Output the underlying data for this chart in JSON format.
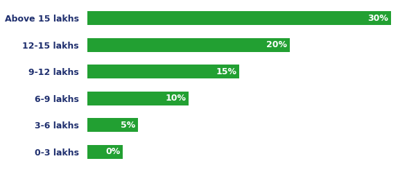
{
  "categories": [
    "Above 15 lakhs",
    "12-15 lakhs",
    "9-12 lakhs",
    "6-9 lakhs",
    "3-6 lakhs",
    "0-3 lakhs"
  ],
  "values": [
    30,
    20,
    15,
    10,
    5,
    0
  ],
  "display_values": [
    30,
    20,
    15,
    10,
    5,
    3.5
  ],
  "bar_color": "#22a032",
  "label_color": "#ffffff",
  "category_color": "#1f2f6e",
  "bar_labels": [
    "30%",
    "20%",
    "15%",
    "10%",
    "5%",
    "0%"
  ],
  "xlim": [
    0,
    32
  ],
  "label_fontsize": 9,
  "category_fontsize": 9,
  "background_color": "#ffffff",
  "bar_height": 0.52
}
